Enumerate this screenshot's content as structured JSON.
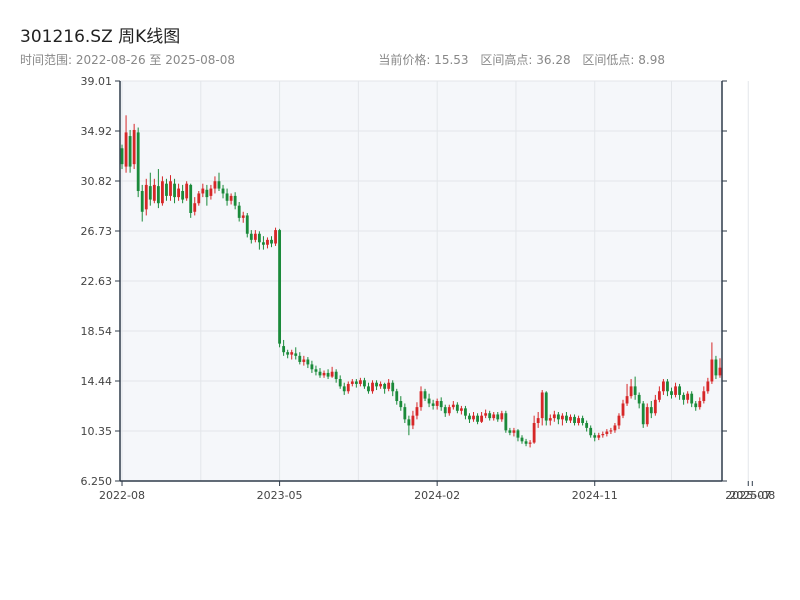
{
  "header": {
    "title": "301216.SZ 周K线图",
    "range": "时间范围: 2022-08-26 至 2025-08-08",
    "current_price": "当前价格: 15.53",
    "range_high": "区间高点: 36.28",
    "range_low": "区间低点: 8.98"
  },
  "colors": {
    "up": "#d62728",
    "down": "#1a8a3a",
    "plot_bg": "#f5f7fa",
    "grid": "#e3e6ea",
    "axis": "#2f3b4a"
  },
  "chart_data": {
    "type": "candlestick",
    "title": "301216.SZ 周K线图",
    "ylim": [
      6.25,
      39.01
    ],
    "y_ticks": [
      "39.01",
      "34.92",
      "30.82",
      "26.73",
      "22.63",
      "18.54",
      "14.44",
      "10.35",
      "6.250"
    ],
    "x_ticks": [
      {
        "label": "2022-08",
        "week": 0
      },
      {
        "label": "2023-05",
        "week": 39
      },
      {
        "label": "2024-02",
        "week": 78
      },
      {
        "label": "2024-11",
        "week": 117
      },
      {
        "label": "2025-07",
        "week": 155
      },
      {
        "label": "2025-08",
        "week": 156
      }
    ],
    "candles": [
      [
        33.5,
        32.2,
        33.8,
        31.8
      ],
      [
        32.0,
        34.8,
        36.2,
        31.5
      ],
      [
        34.5,
        32.0,
        35.0,
        31.5
      ],
      [
        32.2,
        35.0,
        35.5,
        31.8
      ],
      [
        34.8,
        30.0,
        35.2,
        29.5
      ],
      [
        30.0,
        28.3,
        30.5,
        27.5
      ],
      [
        28.5,
        30.5,
        31.0,
        28.0
      ],
      [
        30.4,
        29.3,
        31.5,
        28.8
      ],
      [
        29.2,
        30.5,
        31.0,
        29.0
      ],
      [
        30.4,
        29.0,
        31.8,
        28.6
      ],
      [
        29.0,
        30.8,
        31.2,
        28.8
      ],
      [
        30.6,
        29.6,
        31.0,
        29.2
      ],
      [
        29.6,
        30.8,
        31.3,
        29.2
      ],
      [
        30.6,
        29.5,
        31.0,
        29.0
      ],
      [
        29.5,
        30.2,
        30.6,
        29.2
      ],
      [
        30.0,
        29.3,
        30.5,
        29.0
      ],
      [
        29.4,
        30.6,
        30.8,
        29.2
      ],
      [
        30.5,
        28.2,
        30.6,
        27.8
      ],
      [
        28.3,
        29.0,
        29.5,
        28.0
      ],
      [
        29.0,
        29.8,
        30.0,
        28.8
      ],
      [
        29.8,
        30.2,
        30.6,
        29.5
      ],
      [
        30.1,
        29.5,
        30.5,
        28.8
      ],
      [
        29.6,
        30.2,
        30.5,
        29.3
      ],
      [
        30.2,
        30.8,
        31.2,
        29.8
      ],
      [
        30.8,
        30.2,
        31.5,
        30.0
      ],
      [
        30.2,
        29.8,
        30.5,
        29.4
      ],
      [
        29.8,
        29.2,
        30.2,
        28.8
      ],
      [
        29.2,
        29.6,
        29.8,
        28.9
      ],
      [
        29.6,
        28.8,
        29.9,
        28.5
      ],
      [
        28.8,
        27.8,
        29.1,
        27.5
      ],
      [
        27.8,
        28.0,
        28.3,
        27.4
      ],
      [
        28.0,
        26.5,
        28.2,
        26.2
      ],
      [
        26.5,
        26.0,
        26.8,
        25.7
      ],
      [
        26.0,
        26.5,
        26.8,
        25.8
      ],
      [
        26.5,
        25.8,
        26.7,
        25.2
      ],
      [
        25.8,
        25.6,
        26.3,
        25.2
      ],
      [
        25.6,
        26.0,
        26.2,
        25.3
      ],
      [
        26.0,
        25.7,
        26.3,
        25.4
      ],
      [
        25.7,
        26.8,
        27.0,
        25.5
      ],
      [
        26.8,
        17.5,
        26.9,
        17.2
      ],
      [
        17.3,
        16.8,
        17.8,
        16.5
      ],
      [
        16.8,
        16.6,
        17.0,
        16.3
      ],
      [
        16.6,
        16.8,
        17.0,
        16.2
      ],
      [
        16.7,
        16.5,
        17.2,
        16.2
      ],
      [
        16.5,
        16.0,
        16.8,
        15.8
      ],
      [
        16.0,
        16.2,
        16.5,
        15.7
      ],
      [
        16.2,
        15.8,
        16.4,
        15.5
      ],
      [
        15.8,
        15.4,
        16.1,
        15.1
      ],
      [
        15.4,
        15.2,
        15.7,
        14.9
      ],
      [
        15.2,
        14.9,
        15.5,
        14.7
      ],
      [
        14.9,
        15.1,
        15.3,
        14.7
      ],
      [
        15.1,
        14.8,
        15.4,
        14.6
      ],
      [
        14.8,
        15.2,
        15.6,
        14.7
      ],
      [
        15.2,
        14.6,
        15.4,
        14.3
      ],
      [
        14.6,
        14.0,
        14.9,
        13.8
      ],
      [
        14.0,
        13.6,
        14.3,
        13.3
      ],
      [
        13.6,
        14.2,
        14.4,
        13.4
      ],
      [
        14.2,
        14.4,
        14.6,
        14.0
      ],
      [
        14.4,
        14.2,
        14.6,
        13.9
      ],
      [
        14.2,
        14.5,
        14.7,
        14.0
      ],
      [
        14.5,
        14.0,
        14.7,
        13.8
      ],
      [
        14.0,
        13.6,
        14.3,
        13.4
      ],
      [
        13.6,
        14.3,
        14.5,
        13.4
      ],
      [
        14.3,
        14.0,
        14.5,
        13.7
      ],
      [
        14.0,
        14.2,
        14.4,
        13.8
      ],
      [
        14.2,
        13.8,
        14.3,
        13.4
      ],
      [
        13.8,
        14.3,
        14.6,
        13.6
      ],
      [
        14.3,
        13.6,
        14.5,
        13.2
      ],
      [
        13.6,
        12.8,
        13.8,
        12.5
      ],
      [
        12.8,
        12.3,
        13.2,
        12.0
      ],
      [
        12.3,
        11.3,
        12.6,
        11.0
      ],
      [
        11.3,
        10.8,
        11.6,
        10.0
      ],
      [
        10.8,
        11.6,
        12.0,
        10.5
      ],
      [
        11.6,
        12.3,
        12.7,
        11.3
      ],
      [
        12.3,
        13.6,
        14.0,
        12.0
      ],
      [
        13.6,
        13.0,
        13.8,
        12.8
      ],
      [
        13.0,
        12.6,
        13.4,
        12.3
      ],
      [
        12.6,
        12.4,
        12.9,
        12.1
      ],
      [
        12.4,
        12.8,
        13.0,
        12.1
      ],
      [
        12.8,
        12.3,
        13.1,
        12.0
      ],
      [
        12.3,
        11.8,
        12.5,
        11.5
      ],
      [
        11.8,
        12.3,
        12.5,
        11.6
      ],
      [
        12.3,
        12.5,
        12.8,
        12.1
      ],
      [
        12.5,
        12.0,
        12.7,
        11.8
      ],
      [
        12.0,
        12.2,
        12.4,
        11.7
      ],
      [
        12.2,
        11.6,
        12.4,
        11.3
      ],
      [
        11.6,
        11.3,
        11.8,
        11.0
      ],
      [
        11.3,
        11.6,
        11.9,
        11.1
      ],
      [
        11.6,
        11.1,
        11.8,
        10.9
      ],
      [
        11.1,
        11.6,
        11.9,
        11.0
      ],
      [
        11.6,
        11.8,
        12.1,
        11.4
      ],
      [
        11.8,
        11.4,
        12.0,
        11.2
      ],
      [
        11.4,
        11.7,
        11.9,
        11.2
      ],
      [
        11.7,
        11.3,
        11.9,
        11.1
      ],
      [
        11.3,
        11.8,
        12.0,
        11.1
      ],
      [
        11.8,
        10.4,
        12.0,
        10.2
      ],
      [
        10.4,
        10.2,
        10.6,
        10.0
      ],
      [
        10.2,
        10.4,
        10.6,
        9.9
      ],
      [
        10.4,
        9.8,
        10.5,
        9.5
      ],
      [
        9.8,
        9.5,
        10.0,
        9.3
      ],
      [
        9.5,
        9.3,
        9.7,
        9.1
      ],
      [
        9.3,
        9.4,
        9.6,
        9.0
      ],
      [
        9.4,
        11.0,
        11.6,
        9.3
      ],
      [
        11.0,
        11.4,
        11.9,
        10.6
      ],
      [
        11.4,
        13.5,
        13.7,
        10.8
      ],
      [
        13.5,
        11.2,
        13.6,
        10.8
      ],
      [
        11.2,
        11.4,
        11.7,
        10.8
      ],
      [
        11.4,
        11.7,
        12.0,
        11.1
      ],
      [
        11.7,
        11.3,
        11.9,
        10.9
      ],
      [
        11.3,
        11.6,
        11.8,
        10.8
      ],
      [
        11.6,
        11.2,
        11.9,
        11.0
      ],
      [
        11.2,
        11.5,
        11.7,
        11.0
      ],
      [
        11.5,
        11.0,
        11.7,
        10.8
      ],
      [
        11.0,
        11.4,
        11.6,
        10.8
      ],
      [
        11.4,
        11.0,
        11.6,
        10.8
      ],
      [
        11.0,
        10.6,
        11.2,
        10.3
      ],
      [
        10.6,
        10.0,
        10.8,
        9.8
      ],
      [
        10.0,
        9.8,
        10.2,
        9.5
      ],
      [
        9.8,
        10.0,
        10.2,
        9.6
      ],
      [
        10.0,
        10.1,
        10.3,
        9.8
      ],
      [
        10.1,
        10.3,
        10.5,
        9.9
      ],
      [
        10.3,
        10.4,
        10.6,
        10.1
      ],
      [
        10.4,
        10.8,
        11.0,
        10.2
      ],
      [
        10.8,
        11.6,
        11.8,
        10.5
      ],
      [
        11.6,
        12.6,
        12.9,
        11.4
      ],
      [
        12.6,
        13.2,
        14.2,
        12.4
      ],
      [
        13.2,
        14.0,
        14.6,
        13.0
      ],
      [
        14.0,
        13.3,
        14.8,
        12.9
      ],
      [
        13.3,
        12.6,
        13.5,
        12.2
      ],
      [
        12.6,
        10.9,
        12.8,
        10.6
      ],
      [
        10.9,
        12.3,
        12.6,
        10.7
      ],
      [
        12.3,
        11.8,
        12.8,
        11.4
      ],
      [
        11.8,
        12.9,
        13.3,
        11.6
      ],
      [
        12.9,
        13.6,
        14.0,
        12.7
      ],
      [
        13.6,
        14.4,
        14.6,
        13.3
      ],
      [
        14.4,
        13.6,
        14.6,
        13.2
      ],
      [
        13.6,
        13.3,
        13.9,
        13.0
      ],
      [
        13.3,
        14.0,
        14.3,
        13.1
      ],
      [
        14.0,
        13.3,
        14.2,
        12.9
      ],
      [
        13.3,
        12.9,
        13.5,
        12.5
      ],
      [
        12.9,
        13.4,
        13.6,
        12.6
      ],
      [
        13.4,
        12.6,
        13.6,
        12.3
      ],
      [
        12.6,
        12.3,
        12.8,
        12.0
      ],
      [
        12.3,
        12.8,
        13.1,
        12.1
      ],
      [
        12.8,
        13.6,
        14.0,
        12.6
      ],
      [
        13.6,
        14.4,
        14.7,
        13.4
      ],
      [
        14.4,
        16.2,
        17.6,
        14.2
      ],
      [
        16.2,
        14.9,
        16.5,
        14.6
      ],
      [
        14.9,
        15.53,
        16.3,
        14.7
      ]
    ]
  }
}
